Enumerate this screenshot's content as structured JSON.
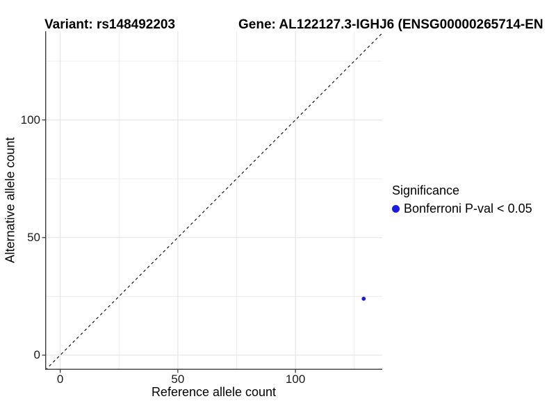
{
  "header": {
    "variant_title": "Variant: rs148492203",
    "gene_title": "Gene: AL122127.3-IGHJ6 (ENSG00000265714-EN"
  },
  "chart_data": {
    "type": "scatter",
    "xlabel": "Reference allele count",
    "ylabel": "Alternative allele count",
    "xlim": [
      -6.4,
      136.9
    ],
    "ylim": [
      -6.2,
      137.7
    ],
    "x_major_ticks": [
      0,
      50,
      100
    ],
    "x_minor_ticks": [
      25,
      75,
      125
    ],
    "y_major_ticks": [
      0,
      50,
      100
    ],
    "y_minor_ticks": [
      25,
      75,
      125
    ],
    "grid": true,
    "legend_position": "right",
    "identity_line": {
      "slope": 1,
      "intercept": 0,
      "style": "dashed",
      "color": "#000000"
    },
    "series": [
      {
        "name": "Bonferroni P-val < 0.05",
        "color": "#1a1ae0",
        "points": [
          {
            "x": 129,
            "y": 24
          }
        ]
      }
    ]
  },
  "legend": {
    "title": "Significance",
    "items": [
      {
        "label": "Bonferroni P-val < 0.05",
        "color": "#1a1ae0",
        "marker": "circle"
      }
    ]
  },
  "colors": {
    "background": "#ffffff",
    "axis_line": "#3a3a3a",
    "grid_major": "#e6e6e6",
    "grid_minor": "#ededed",
    "tick_mark": "#3a3a3a",
    "point": "#1a1ae0",
    "text": "#000000"
  }
}
